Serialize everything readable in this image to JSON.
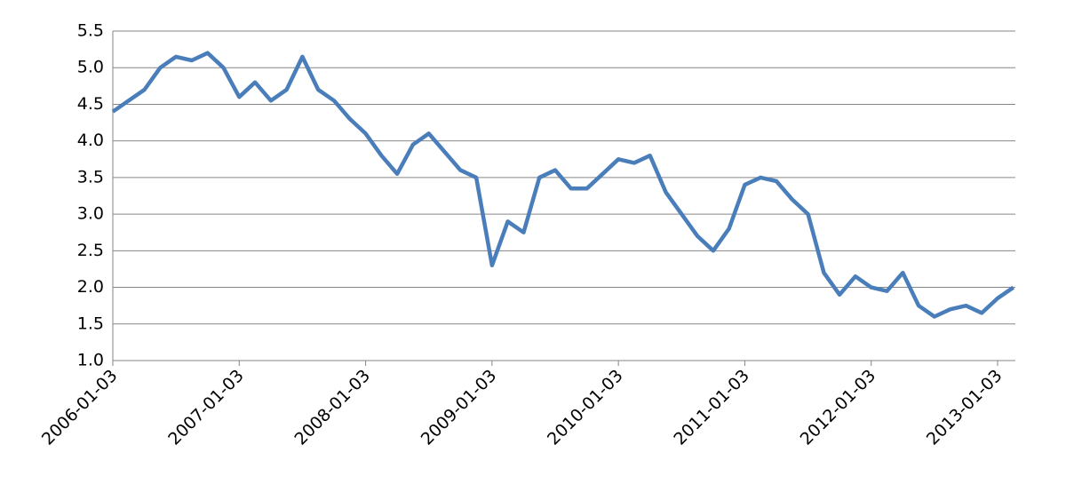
{
  "chart_data": {
    "type": "line",
    "categories": [
      "2006-01-03",
      null,
      null,
      null,
      null,
      null,
      null,
      null,
      "2007-01-03",
      null,
      null,
      null,
      null,
      null,
      null,
      null,
      "2008-01-03",
      null,
      null,
      null,
      null,
      null,
      null,
      null,
      "2009-01-03",
      null,
      null,
      null,
      null,
      null,
      null,
      null,
      "2010-01-03",
      null,
      null,
      null,
      null,
      null,
      null,
      null,
      "2011-01-03",
      null,
      null,
      null,
      null,
      null,
      null,
      null,
      "2012-01-03",
      null,
      null,
      null,
      null,
      null,
      null,
      null,
      "2013-01-03",
      null
    ],
    "values": [
      4.4,
      4.55,
      4.7,
      5.0,
      5.15,
      5.1,
      5.2,
      5.0,
      4.6,
      4.8,
      4.55,
      4.7,
      5.15,
      4.7,
      4.55,
      4.3,
      4.1,
      3.8,
      3.55,
      3.95,
      4.1,
      3.85,
      3.6,
      3.5,
      2.3,
      2.9,
      2.75,
      3.5,
      3.6,
      3.35,
      3.35,
      3.55,
      3.75,
      3.7,
      3.8,
      3.3,
      3.0,
      2.7,
      2.5,
      2.8,
      3.4,
      3.5,
      3.45,
      3.2,
      3.0,
      2.2,
      1.9,
      2.15,
      2.0,
      1.95,
      2.2,
      1.75,
      1.6,
      1.7,
      1.75,
      1.65,
      1.85,
      2.0
    ],
    "color": "#4a7ebb",
    "ylim": [
      1,
      5.5
    ],
    "yticks": [
      {
        "value": 1,
        "label": "1.0"
      },
      1.5,
      {
        "value": 2,
        "label": "2.0"
      },
      2.5,
      {
        "value": 3,
        "label": "3.0"
      },
      3.5,
      {
        "value": 4,
        "label": "4.0"
      },
      4.5,
      {
        "value": 5,
        "label": "5.0"
      },
      5.5
    ],
    "grid": true
  }
}
